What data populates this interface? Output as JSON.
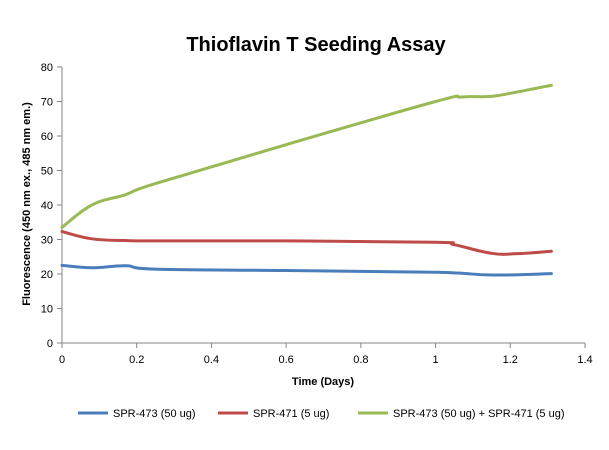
{
  "chart_data": {
    "type": "line",
    "title": "Thioflavin T Seeding Assay",
    "xlabel": "Time (Days)",
    "ylabel": "Fluorescence (450 nm ex., 485 nm em.)",
    "xlim": [
      0,
      1.4
    ],
    "ylim": [
      0,
      80
    ],
    "xticks": [
      0,
      0.2,
      0.4,
      0.6,
      0.8,
      1,
      1.2,
      1.4
    ],
    "xtick_labels": [
      "0",
      "0.2",
      "0.4",
      "0.6",
      "0.8",
      "1",
      "1.2",
      "1.4"
    ],
    "yticks": [
      0,
      10,
      20,
      30,
      40,
      50,
      60,
      70,
      80
    ],
    "ytick_labels": [
      "0",
      "10",
      "20",
      "30",
      "40",
      "50",
      "60",
      "70",
      "80"
    ],
    "grid": false,
    "legend_position": "bottom",
    "series": [
      {
        "name": "SPR-473 (50 ug)",
        "color": "#4a7ebb",
        "x": [
          0,
          0.08,
          0.17,
          0.25,
          0.6,
          1.0,
          1.15,
          1.31
        ],
        "y": [
          22.5,
          21.8,
          22.4,
          21.4,
          21.0,
          20.5,
          19.7,
          20.1
        ]
      },
      {
        "name": "SPR-471 (5 ug)",
        "color": "#be4b48",
        "x": [
          0,
          0.08,
          0.17,
          0.25,
          0.6,
          1.0,
          1.05,
          1.15,
          1.22,
          1.31
        ],
        "y": [
          32.3,
          30.2,
          29.7,
          29.6,
          29.6,
          29.2,
          28.5,
          26.0,
          25.9,
          26.6
        ]
      },
      {
        "name": "SPR-473 (50 ug) + SPR-471 (5 ug)",
        "color": "#98b954",
        "x": [
          0,
          0.08,
          0.17,
          0.25,
          0.6,
          1.0,
          1.07,
          1.15,
          1.22,
          1.31
        ],
        "y": [
          33.5,
          40.0,
          43.0,
          46.2,
          57.5,
          70.0,
          71.3,
          71.5,
          72.8,
          74.7
        ]
      }
    ]
  }
}
